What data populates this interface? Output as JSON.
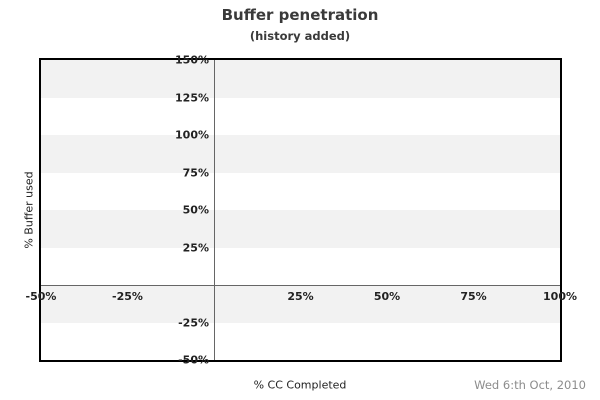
{
  "header": {
    "title": "Buffer penetration",
    "subtitle": "(history added)"
  },
  "footer": {
    "date": "Wed 6:th Oct, 2010"
  },
  "chart_data": {
    "type": "line",
    "title": "Buffer penetration",
    "subtitle": "(history added)",
    "xlabel": "% CC Completed",
    "ylabel": "% Buffer used",
    "xlim": [
      -50,
      100
    ],
    "ylim": [
      -50,
      150
    ],
    "x_ticks": [
      {
        "value": -50,
        "label": "-50%"
      },
      {
        "value": -25,
        "label": "-25%"
      },
      {
        "value": 25,
        "label": "25%"
      },
      {
        "value": 50,
        "label": "50%"
      },
      {
        "value": 75,
        "label": "75%"
      },
      {
        "value": 100,
        "label": "100%"
      }
    ],
    "y_ticks": [
      {
        "value": 150,
        "label": "150%"
      },
      {
        "value": 125,
        "label": "125%"
      },
      {
        "value": 100,
        "label": "100%"
      },
      {
        "value": 75,
        "label": "75%"
      },
      {
        "value": 50,
        "label": "50%"
      },
      {
        "value": 25,
        "label": "25%"
      },
      {
        "value": -25,
        "label": "-25%"
      },
      {
        "value": -50,
        "label": "-50%"
      }
    ],
    "series": [],
    "grid": "alternating horizontal bands every 25%, starting shaded at top (150%-125%)",
    "legend": "none",
    "axes_cross_at": {
      "x": 0,
      "y": 0
    },
    "annotations": {
      "date_stamp": "Wed 6:th Oct, 2010"
    }
  },
  "colors": {
    "background": "#ffffff",
    "band_shaded": "#f2f2f2",
    "band_plain": "#ffffff",
    "plot_border": "#000000",
    "zero_axis_line": "#666666",
    "title_text": "#3a3a3a",
    "tick_text": "#222222",
    "axis_title_text": "#222222",
    "date_text": "#8c8c8c"
  }
}
